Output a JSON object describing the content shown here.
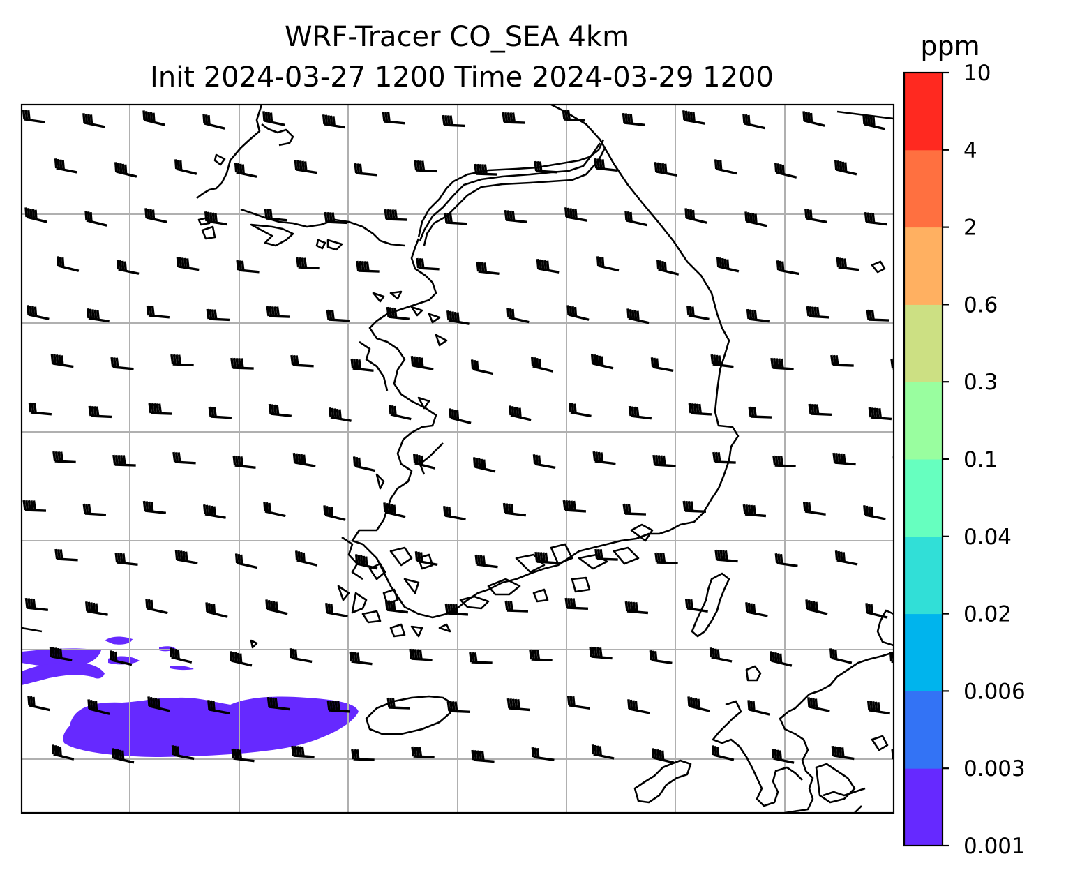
{
  "title": {
    "line1": "WRF-Tracer CO_SEA 4km",
    "line2": "Init 2024-03-27 1200 Time 2024-03-29 1200"
  },
  "colorbar": {
    "unit": "ppm",
    "ticks": [
      "0.001",
      "0.003",
      "0.006",
      "0.02",
      "0.04",
      "0.1",
      "0.3",
      "0.6",
      "2",
      "4",
      "10"
    ],
    "colors": [
      "#6629ff",
      "#3373f5",
      "#00b4ed",
      "#31dfd7",
      "#66ffbf",
      "#99fe9f",
      "#cce083",
      "#ffb061",
      "#ff7040",
      "#ff2920"
    ]
  },
  "map": {
    "grid": true,
    "wind_barbs": true,
    "tracer_fill_color": "#6629ff"
  }
}
